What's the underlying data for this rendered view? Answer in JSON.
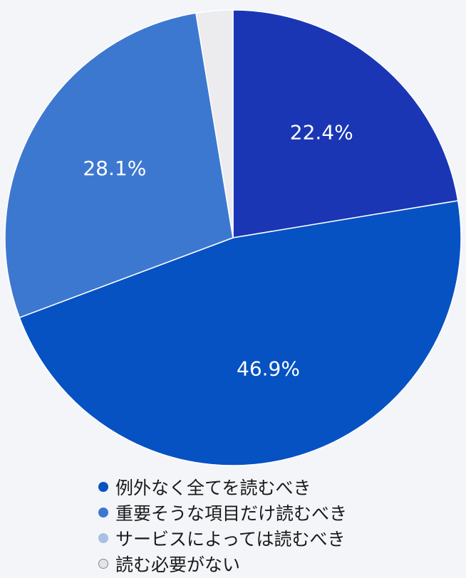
{
  "chart_data": {
    "type": "pie",
    "start": "12 o'clock, clockwise",
    "slices": [
      {
        "label": "例外なく全てを読むべき",
        "value": 22.4,
        "value_label": "22.4%",
        "color": "#1a36b5"
      },
      {
        "label": "重要そうな項目だけ読むべき",
        "value": 46.9,
        "value_label": "46.9%",
        "color": "#0652c3"
      },
      {
        "label": "サービスによっては読むべき",
        "value": 28.1,
        "value_label": "28.1%",
        "color": "#3d78d0"
      },
      {
        "label": "読む必要がない",
        "value": 2.6,
        "value_label": "",
        "color": "#ececee"
      }
    ],
    "legend": {
      "position": "bottom",
      "items": [
        {
          "label": "例外なく全てを読むべき",
          "color": "#0652c3"
        },
        {
          "label": "重要そうな項目だけ読むべき",
          "color": "#3d78d0"
        },
        {
          "label": "サービスによっては読むべき",
          "color": "#a8c0e6"
        },
        {
          "label": "読む必要がない",
          "color": "#e4e4e6"
        }
      ]
    }
  }
}
